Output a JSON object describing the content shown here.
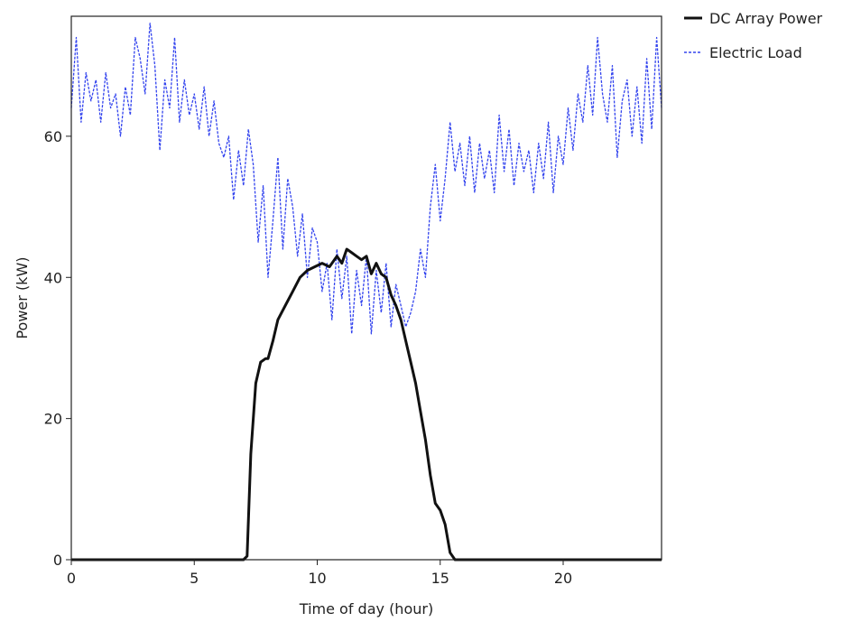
{
  "chart_data": {
    "type": "line",
    "xlabel": "Time of day (hour)",
    "ylabel": "Power (kW)",
    "xlim": [
      0,
      24
    ],
    "ylim": [
      0,
      77
    ],
    "xticks": [
      0,
      5,
      10,
      15,
      20
    ],
    "yticks": [
      0,
      20,
      40,
      60
    ],
    "grid": false,
    "legend_position": "top-right-outside",
    "series": [
      {
        "name": "DC Array Power",
        "color": "#111111",
        "style": "solid",
        "x": [
          0,
          7.0,
          7.15,
          7.3,
          7.5,
          7.7,
          7.9,
          8.0,
          8.2,
          8.4,
          8.7,
          9.0,
          9.3,
          9.6,
          9.9,
          10.2,
          10.5,
          10.8,
          11.0,
          11.2,
          11.4,
          11.6,
          11.8,
          12.0,
          12.2,
          12.4,
          12.6,
          12.8,
          13.0,
          13.2,
          13.4,
          13.6,
          13.8,
          14.0,
          14.2,
          14.4,
          14.6,
          14.8,
          15.0,
          15.2,
          15.4,
          15.6,
          15.75,
          15.8,
          24
        ],
        "y": [
          0,
          0,
          0.5,
          15,
          25,
          28,
          28.5,
          28.5,
          31,
          34,
          36,
          38,
          40,
          41,
          41.5,
          42,
          41.5,
          43,
          42,
          44,
          43.5,
          43,
          42.5,
          43,
          40.5,
          42,
          40.5,
          40,
          37.5,
          36,
          34,
          31,
          28,
          25,
          21,
          17,
          12,
          8,
          7,
          5,
          1,
          0,
          0,
          0,
          0
        ]
      },
      {
        "name": "Electric Load",
        "color": "#3344ee",
        "style": "dashed",
        "x": [
          0,
          0.2,
          0.4,
          0.6,
          0.8,
          1.0,
          1.2,
          1.4,
          1.6,
          1.8,
          2.0,
          2.2,
          2.4,
          2.6,
          2.8,
          3.0,
          3.2,
          3.4,
          3.6,
          3.8,
          4.0,
          4.2,
          4.4,
          4.6,
          4.8,
          5.0,
          5.2,
          5.4,
          5.6,
          5.8,
          6.0,
          6.2,
          6.4,
          6.6,
          6.8,
          7.0,
          7.2,
          7.4,
          7.6,
          7.8,
          8.0,
          8.2,
          8.4,
          8.6,
          8.8,
          9.0,
          9.2,
          9.4,
          9.6,
          9.8,
          10.0,
          10.2,
          10.4,
          10.6,
          10.8,
          11.0,
          11.2,
          11.4,
          11.6,
          11.8,
          12.0,
          12.2,
          12.4,
          12.6,
          12.8,
          13.0,
          13.2,
          13.4,
          13.6,
          13.8,
          14.0,
          14.2,
          14.4,
          14.6,
          14.8,
          15.0,
          15.2,
          15.4,
          15.6,
          15.8,
          16.0,
          16.2,
          16.4,
          16.6,
          16.8,
          17.0,
          17.2,
          17.4,
          17.6,
          17.8,
          18.0,
          18.2,
          18.4,
          18.6,
          18.8,
          19.0,
          19.2,
          19.4,
          19.6,
          19.8,
          20.0,
          20.2,
          20.4,
          20.6,
          20.8,
          21.0,
          21.2,
          21.4,
          21.6,
          21.8,
          22.0,
          22.2,
          22.4,
          22.6,
          22.8,
          23.0,
          23.2,
          23.4,
          23.6,
          23.8,
          24.0
        ],
        "y": [
          64,
          74,
          62,
          69,
          65,
          68,
          62,
          69,
          64,
          66,
          60,
          67,
          63,
          74,
          71,
          66,
          76,
          70,
          58,
          68,
          64,
          74,
          62,
          68,
          63,
          66,
          61,
          67,
          60,
          65,
          59,
          57,
          60,
          51,
          58,
          53,
          61,
          56,
          45,
          53,
          40,
          48,
          57,
          44,
          54,
          50,
          43,
          49,
          40,
          47,
          45,
          38,
          42,
          34,
          44,
          37,
          43,
          32,
          41,
          36,
          43,
          32,
          41,
          35,
          42,
          33,
          39,
          36,
          33,
          35,
          38,
          44,
          40,
          50,
          56,
          48,
          54,
          62,
          55,
          59,
          53,
          60,
          52,
          59,
          54,
          58,
          52,
          63,
          55,
          61,
          53,
          59,
          55,
          58,
          52,
          59,
          54,
          62,
          52,
          60,
          56,
          64,
          58,
          66,
          62,
          70,
          63,
          74,
          66,
          62,
          70,
          57,
          65,
          68,
          60,
          67,
          59,
          71,
          61,
          74,
          64
        ]
      }
    ]
  }
}
